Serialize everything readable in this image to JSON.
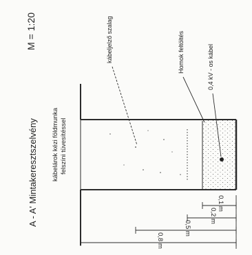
{
  "title": "A - A' Mintakeresztszelvény",
  "scale": "M = 1:20",
  "description_line1": "kábelárok kézi földmunka",
  "description_line2": "felszíni tüvesítéssel",
  "labels": {
    "warning_tape": "kábeljelző szalag",
    "sand_bedding": "Homok feltöltés",
    "cable": "0,4 kV - os kábel"
  },
  "dimensions": {
    "d1": "0,1 m",
    "d2": "0,2 m",
    "d3": "0,5 m",
    "d4": "0,8 m"
  },
  "colors": {
    "line": "#2b2b2b",
    "stipple": "#555555"
  }
}
